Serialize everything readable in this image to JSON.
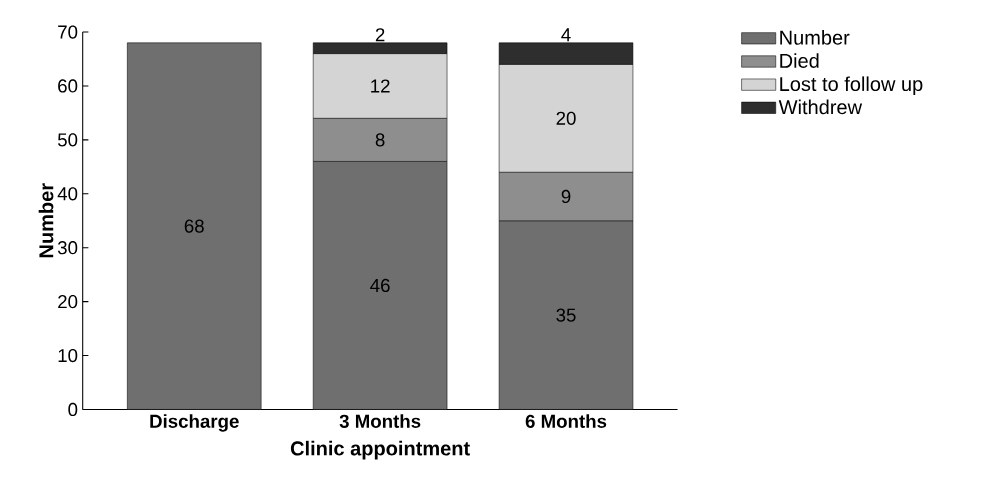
{
  "chart_data": {
    "type": "bar",
    "stacked": true,
    "xlabel": "Clinic appointment",
    "ylabel": "Number",
    "categories": [
      "Discharge",
      "3 Months",
      "6 Months"
    ],
    "series": [
      {
        "name": "Number",
        "color": "#6f6f6f",
        "values": [
          68,
          46,
          35
        ],
        "value_labels": [
          "68",
          "46",
          "35"
        ]
      },
      {
        "name": "Died",
        "color": "#8e8e8e",
        "values": [
          null,
          8,
          9
        ],
        "value_labels": [
          null,
          "8",
          "9"
        ]
      },
      {
        "name": "Lost to follow up",
        "color": "#d4d4d4",
        "values": [
          null,
          12,
          20
        ],
        "value_labels": [
          null,
          "12",
          "20"
        ]
      },
      {
        "name": "Withdrew",
        "color": "#2e2e2e",
        "values": [
          null,
          2,
          4
        ],
        "value_labels": [
          null,
          "2",
          "4"
        ]
      }
    ],
    "ylim": [
      0,
      70
    ],
    "yticks": [
      0,
      10,
      20,
      30,
      40,
      50,
      60,
      70
    ],
    "legend": "right",
    "grid": false
  }
}
